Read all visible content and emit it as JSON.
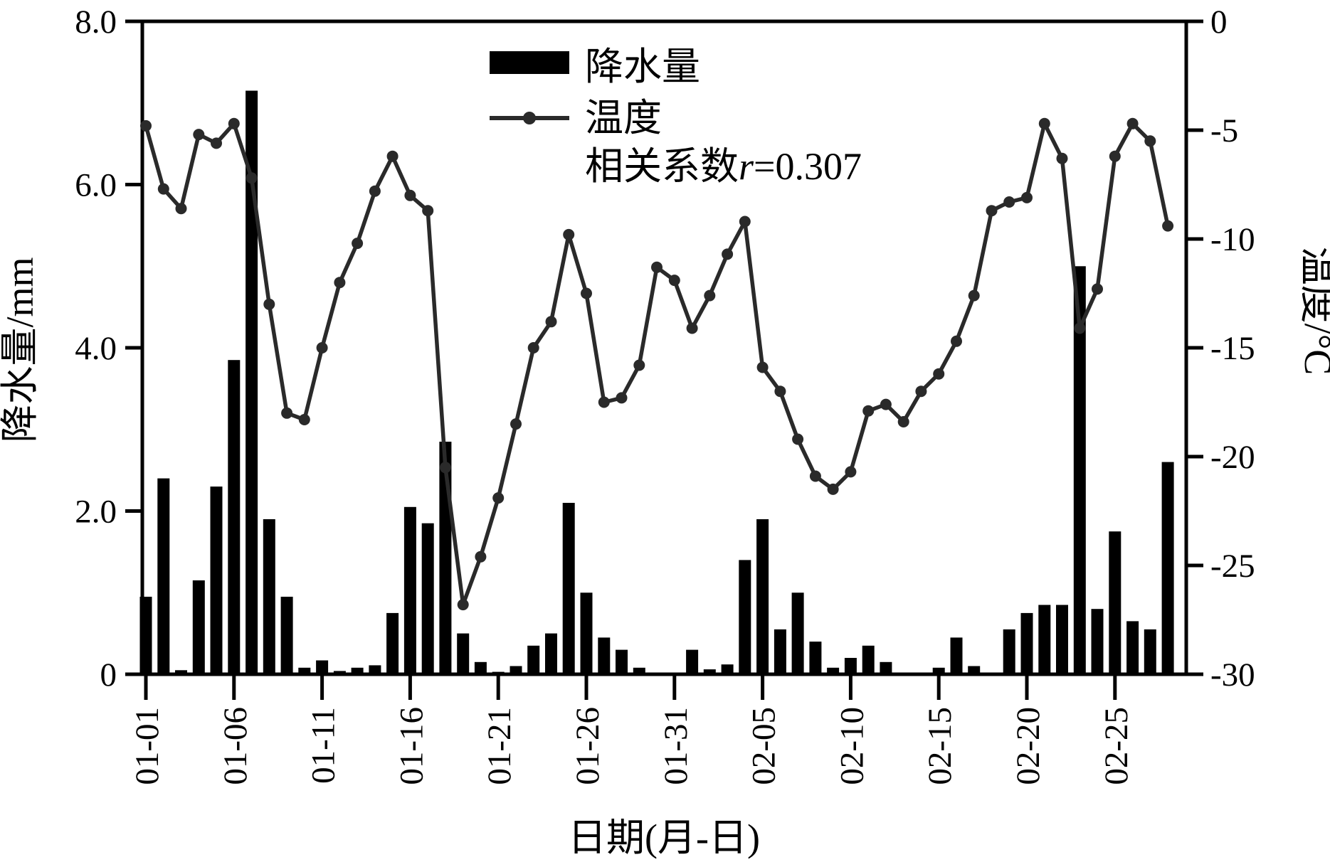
{
  "meta": {
    "background": "#ffffff",
    "ink": "#000000",
    "line_color": "#2a2a2a"
  },
  "legend": {
    "bar_label": "降水量",
    "line_label": "温度",
    "corr_prefix": "相关系数",
    "corr_symbol": "r",
    "corr_rest": "=0.307"
  },
  "axes": {
    "left": {
      "title": "降水量/mm",
      "tick_labels": [
        "8.0",
        "6.0",
        "4.0",
        "2.0",
        "0"
      ],
      "tick_values": [
        8,
        6,
        4,
        2,
        0
      ]
    },
    "right": {
      "title": "温度/°C",
      "tick_labels": [
        "0",
        "-5",
        "-10",
        "-15",
        "-20",
        "-25",
        "-30"
      ],
      "tick_values": [
        0,
        -5,
        -10,
        -15,
        -20,
        -25,
        -30
      ]
    },
    "x": {
      "title": "日期(月-日)",
      "tick_labels": [
        "01-01",
        "01-06",
        "01-11",
        "01-16",
        "01-21",
        "01-26",
        "01-31",
        "02-05",
        "02-10",
        "02-15",
        "02-20",
        "02-25"
      ],
      "tick_days": [
        0,
        5,
        10,
        15,
        20,
        25,
        30,
        35,
        40,
        45,
        50,
        55
      ]
    }
  },
  "chart_data": {
    "type": "bar+line",
    "title": "",
    "xlabel": "日期(月-日)",
    "ylabel_left": "降水量/mm",
    "ylabel_right": "温度/°C",
    "ylim_left": [
      0,
      8
    ],
    "ylim_right": [
      -30,
      0
    ],
    "grid": false,
    "legend_position": "upper center",
    "correlation_r": 0.307,
    "categories": [
      "01-01",
      "01-02",
      "01-03",
      "01-04",
      "01-05",
      "01-06",
      "01-07",
      "01-08",
      "01-09",
      "01-10",
      "01-11",
      "01-12",
      "01-13",
      "01-14",
      "01-15",
      "01-16",
      "01-17",
      "01-18",
      "01-19",
      "01-20",
      "01-21",
      "01-22",
      "01-23",
      "01-24",
      "01-25",
      "01-26",
      "01-27",
      "01-28",
      "01-29",
      "01-30",
      "01-31",
      "02-01",
      "02-02",
      "02-03",
      "02-04",
      "02-05",
      "02-06",
      "02-07",
      "02-08",
      "02-09",
      "02-10",
      "02-11",
      "02-12",
      "02-13",
      "02-14",
      "02-15",
      "02-16",
      "02-17",
      "02-18",
      "02-19",
      "02-20",
      "02-21",
      "02-22",
      "02-23",
      "02-24",
      "02-25",
      "02-26",
      "02-27",
      "02-28"
    ],
    "series": [
      {
        "name": "降水量",
        "type": "bar",
        "axis": "left",
        "unit": "mm",
        "values": [
          0.95,
          2.4,
          0.05,
          1.15,
          2.3,
          3.85,
          7.15,
          1.9,
          0.95,
          0.08,
          0.17,
          0.04,
          0.08,
          0.11,
          0.75,
          2.05,
          1.85,
          2.85,
          0.5,
          0.15,
          0.03,
          0.1,
          0.35,
          0.5,
          2.1,
          1.0,
          0.45,
          0.3,
          0.08,
          0,
          0,
          0.3,
          0.06,
          0.12,
          1.4,
          1.9,
          0.55,
          1.0,
          0.4,
          0.08,
          0.2,
          0.35,
          0.15,
          0,
          0,
          0.08,
          0.45,
          0.1,
          0,
          0.55,
          0.75,
          0.85,
          0.85,
          5.0,
          0.8,
          1.75,
          0.65,
          0.55,
          2.6
        ]
      },
      {
        "name": "温度",
        "type": "line",
        "axis": "right",
        "unit": "°C",
        "values": [
          -4.8,
          -7.7,
          -8.6,
          -5.2,
          -5.6,
          -4.7,
          -7.2,
          -13.0,
          -18.0,
          -18.3,
          -15.0,
          -12.0,
          -10.2,
          -7.8,
          -6.2,
          -8.0,
          -8.7,
          -20.5,
          -26.8,
          -24.6,
          -21.9,
          -18.5,
          -15.0,
          -13.8,
          -9.8,
          -12.5,
          -17.5,
          -17.3,
          -15.8,
          -11.3,
          -11.9,
          -14.1,
          -12.6,
          -10.7,
          -9.2,
          -15.9,
          -17.0,
          -19.2,
          -20.9,
          -21.5,
          -20.7,
          -17.9,
          -17.6,
          -18.4,
          -17.0,
          -16.2,
          -14.7,
          -12.6,
          -8.7,
          -8.3,
          -8.1,
          -4.7,
          -6.3,
          -14.1,
          -12.3,
          -6.2,
          -4.7,
          -5.5,
          -9.4
        ]
      }
    ]
  }
}
